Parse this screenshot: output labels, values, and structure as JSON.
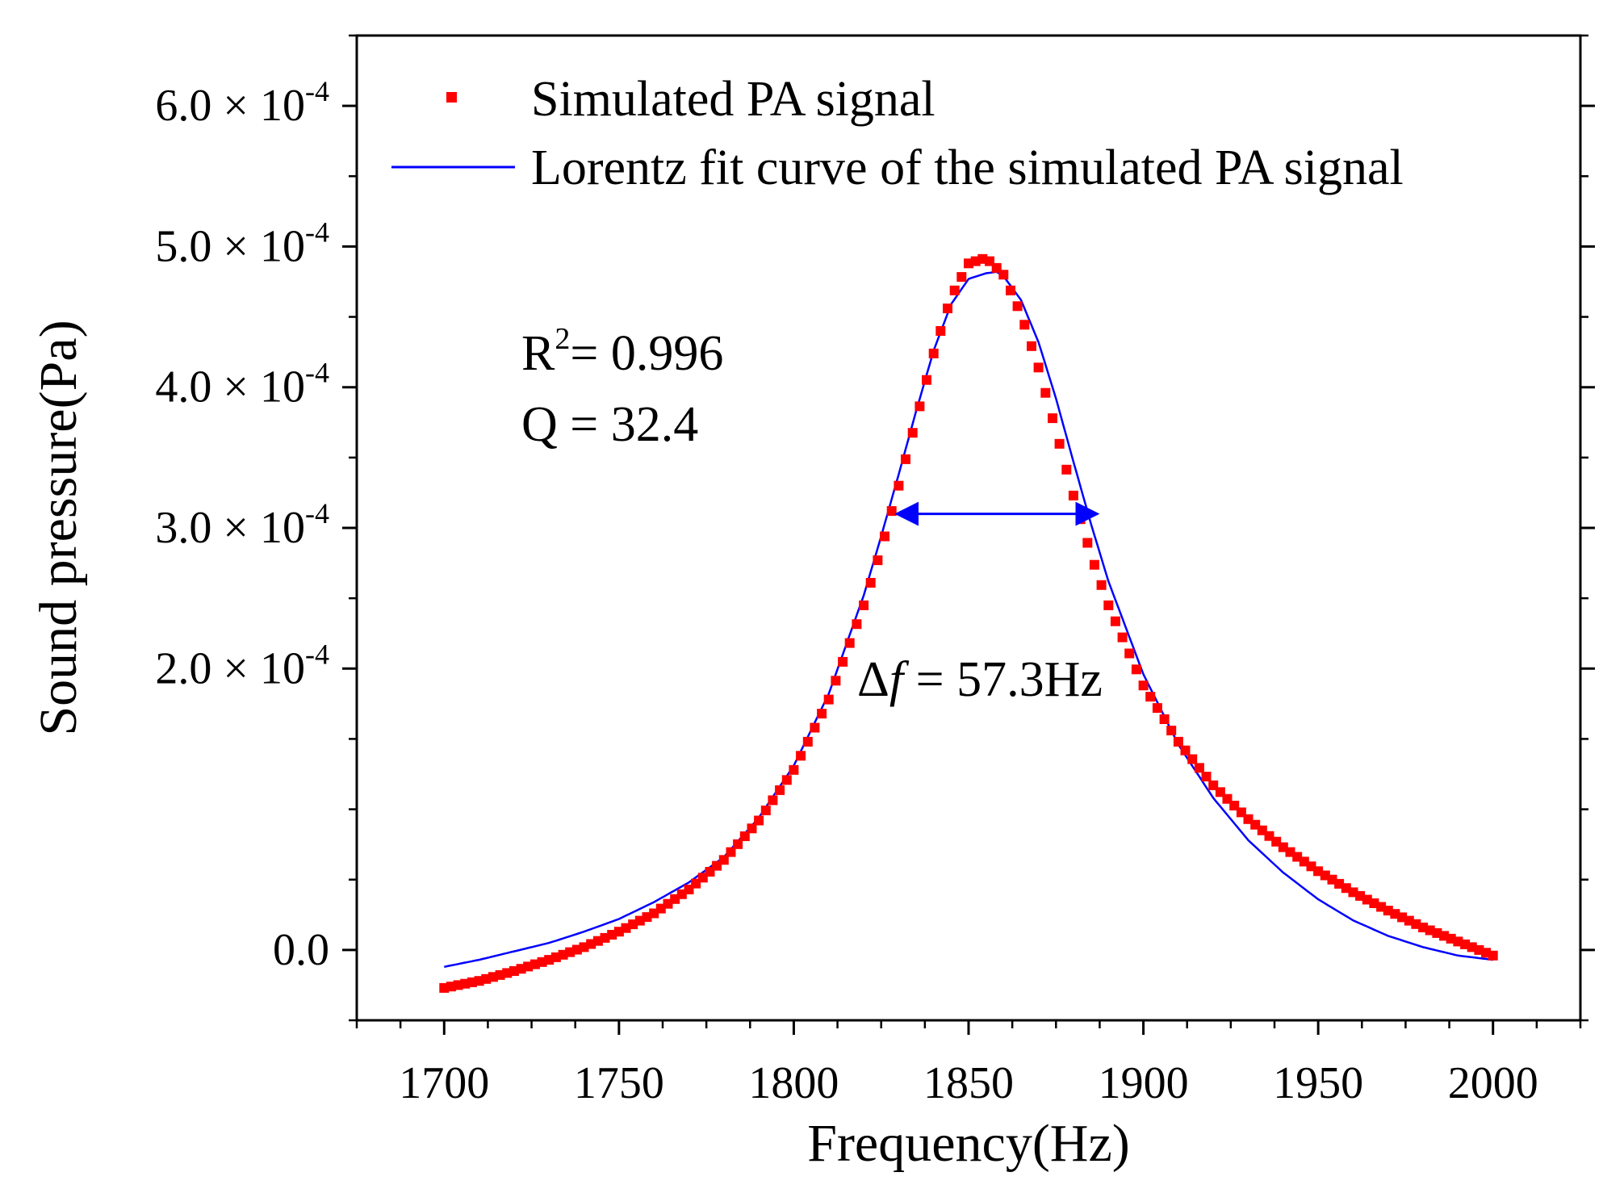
{
  "chart_data": {
    "type": "scatter",
    "title": "",
    "xlabel": "Frequency(Hz)",
    "ylabel": "Sound pressure(Pa)",
    "xlim": [
      1675,
      2025
    ],
    "ylim": [
      -5e-05,
      0.00065
    ],
    "x_ticks": [
      1700,
      1750,
      1800,
      1850,
      1900,
      1950,
      2000
    ],
    "x_tick_labels": [
      "1700",
      "1750",
      "1800",
      "1850",
      "1900",
      "1950",
      "2000"
    ],
    "y_ticks": [
      0,
      0.0002,
      0.0003,
      0.0004,
      0.0005,
      0.0006
    ],
    "y_tick_labels": [
      {
        "mantissa": "0.0",
        "exponent": ""
      },
      {
        "mantissa": "2.0",
        "exponent": "-4"
      },
      {
        "mantissa": "3.0",
        "exponent": "-4"
      },
      {
        "mantissa": "4.0",
        "exponent": "-4"
      },
      {
        "mantissa": "5.0",
        "exponent": "-4"
      },
      {
        "mantissa": "6.0",
        "exponent": "-4"
      }
    ],
    "y_tick_times": "× 10",
    "legend": {
      "position": "top",
      "entries": [
        "Simulated PA signal",
        "Lorentz fit curve of the simulated PA signal"
      ]
    },
    "series": [
      {
        "name": "Simulated PA signal",
        "style": "square-markers",
        "color": "#ff0000",
        "x": [
          1700,
          1710,
          1720,
          1730,
          1740,
          1750,
          1760,
          1770,
          1780,
          1790,
          1800,
          1810,
          1820,
          1825,
          1830,
          1835,
          1840,
          1845,
          1850,
          1855,
          1860,
          1865,
          1870,
          1875,
          1880,
          1885,
          1890,
          1900,
          1910,
          1920,
          1930,
          1940,
          1950,
          1960,
          1970,
          1980,
          1990,
          2000
        ],
        "y": [
          -2.7e-05,
          -2.2e-05,
          -1.5e-05,
          -7e-06,
          2e-06,
          1.3e-05,
          2.6e-05,
          4.3e-05,
          6.4e-05,
          9.2e-05,
          0.000128,
          0.000178,
          0.000245,
          0.000285,
          0.00033,
          0.000377,
          0.000424,
          0.000464,
          0.000488,
          0.000492,
          0.00048,
          0.000452,
          0.000414,
          0.000369,
          0.000323,
          0.000281,
          0.000245,
          0.000188,
          0.000148,
          0.000117,
          9.3e-05,
          7.3e-05,
          5.6e-05,
          4.1e-05,
          2.8e-05,
          1.6e-05,
          6e-06,
          -4e-06
        ]
      },
      {
        "name": "Lorentz fit curve of the simulated PA signal",
        "style": "line",
        "color": "#0000ff",
        "x": [
          1700,
          1710,
          1720,
          1730,
          1740,
          1750,
          1760,
          1770,
          1780,
          1790,
          1800,
          1810,
          1820,
          1825,
          1830,
          1835,
          1840,
          1845,
          1850,
          1855,
          1858,
          1860,
          1865,
          1870,
          1875,
          1880,
          1885,
          1890,
          1900,
          1910,
          1920,
          1930,
          1940,
          1950,
          1960,
          1970,
          1980,
          1990,
          2000
        ],
        "y": [
          -1.2e-05,
          -7e-06,
          -1e-06,
          5e-06,
          1.3e-05,
          2.2e-05,
          3.4e-05,
          4.8e-05,
          6.6e-05,
          9.4e-05,
          0.000131,
          0.000182,
          0.000252,
          0.000294,
          0.000338,
          0.000383,
          0.000426,
          0.000459,
          0.000477,
          0.000481,
          0.000482,
          0.000479,
          0.000462,
          0.000432,
          0.000392,
          0.000347,
          0.000303,
          0.000262,
          0.000196,
          0.000146,
          0.000108,
          7.8e-05,
          5.5e-05,
          3.6e-05,
          2.1e-05,
          1e-05,
          2e-06,
          -4e-06,
          -7e-06
        ]
      }
    ],
    "annotations": {
      "r2_label": "R",
      "r2_sup": "2",
      "r2_value": "= 0.996",
      "q_text": "Q = 32.4",
      "delta_symbol": "Δ",
      "delta_f": "f",
      "delta_value": " = 57.3Hz",
      "fwhm_range": [
        1829.5,
        1886.8
      ],
      "fwhm_level": 0.00031,
      "arrow_color": "#0000ff"
    }
  }
}
